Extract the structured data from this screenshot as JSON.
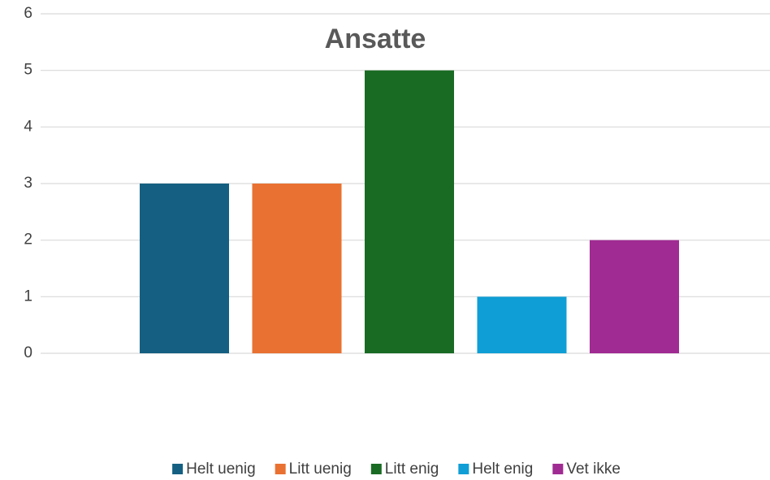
{
  "chart_data": {
    "type": "bar",
    "title": "Ansatte",
    "categories": [
      null
    ],
    "series": [
      {
        "name": "Helt uenig",
        "color": "#156082",
        "values": [
          3
        ]
      },
      {
        "name": "Litt uenig",
        "color": "#e97132",
        "values": [
          3
        ]
      },
      {
        "name": "Litt enig",
        "color": "#196b24",
        "values": [
          5
        ]
      },
      {
        "name": "Helt enig",
        "color": "#0f9ed5",
        "values": [
          1
        ]
      },
      {
        "name": "Vet ikke",
        "color": "#a02b93",
        "values": [
          2
        ]
      }
    ],
    "ylim": [
      0,
      6
    ],
    "yticks": [
      0,
      1,
      2,
      3,
      4,
      5,
      6
    ],
    "grid": true,
    "legend": "bottom"
  }
}
